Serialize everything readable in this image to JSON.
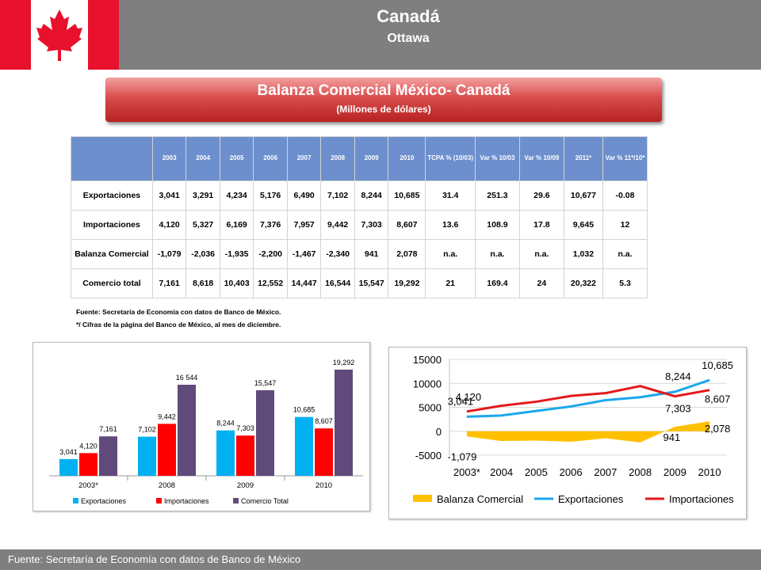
{
  "header": {
    "country": "Canadá",
    "city": "Ottawa"
  },
  "title": {
    "main": "Balanza Comercial México- Canadá",
    "sub": "(Millones de dólares)"
  },
  "table": {
    "columns": [
      "",
      "2003",
      "2004",
      "2005",
      "2006",
      "2007",
      "2008",
      "2009",
      "2010",
      "TCPA % (10/03)",
      "Var % 10/03",
      "Var % 10/09",
      "2011*",
      "Var % 11*/10*"
    ],
    "rows": [
      [
        "Exportaciones",
        "3,041",
        "3,291",
        "4,234",
        "5,176",
        "6,490",
        "7,102",
        "8,244",
        "10,685",
        "31.4",
        "251.3",
        "29.6",
        "10,677",
        "-0.08"
      ],
      [
        "Importaciones",
        "4,120",
        "5,327",
        "6,169",
        "7,376",
        "7,957",
        "9,442",
        "7,303",
        "8,607",
        "13.6",
        "108.9",
        "17.8",
        "9,645",
        "12"
      ],
      [
        "Balanza  Comercial",
        "-1,079",
        "-2,036",
        "-1,935",
        "-2,200",
        "-1,467",
        "-2,340",
        "941",
        "2,078",
        "n.a.",
        "n.a.",
        "n.a.",
        "1,032",
        "n.a."
      ],
      [
        "Comercio total",
        "7,161",
        "8,618",
        "10,403",
        "12,552",
        "14,447",
        "16,544",
        "15,547",
        "19,292",
        "21",
        "169.4",
        "24",
        "20,322",
        "5.3"
      ]
    ]
  },
  "notes": {
    "source": "Fuente: Secretaría de Economía  con datos de Banco de México.",
    "asterisk": "*/ Cifras de la página del Banco de México, al mes de diciembre."
  },
  "footer": "Fuente: Secretaría de Economía con datos de Banco de México",
  "colors": {
    "exports_bar": "#00b0f0",
    "imports_bar": "#ff0000",
    "total_bar": "#604a7b",
    "exports_line": "#1aa7ec",
    "imports_line": "#e3191c",
    "balance_area": "#ffc000",
    "flag_red": "#e8112d"
  },
  "chart_data": [
    {
      "type": "bar",
      "categories": [
        "2003*",
        "2008",
        "2009",
        "2010"
      ],
      "series": [
        {
          "name": "Exportaciones",
          "values": [
            3041,
            7102,
            8244,
            10685
          ],
          "labels": [
            "3,041",
            "7,102",
            "8,244",
            "10,685"
          ]
        },
        {
          "name": "Importaciones",
          "values": [
            4120,
            9442,
            7303,
            8607
          ],
          "labels": [
            "4,120",
            "9,442",
            "7,303",
            "8,607"
          ]
        },
        {
          "name": "Comercio Total",
          "values": [
            7161,
            16544,
            15547,
            19292
          ],
          "labels": [
            "7,161",
            "16 544",
            "15,547",
            "19,292"
          ]
        }
      ],
      "ylim": [
        0,
        21000
      ],
      "legend": "bottom"
    },
    {
      "type": "line",
      "categories": [
        "2003*",
        "2004",
        "2005",
        "2006",
        "2007",
        "2008",
        "2009",
        "2010"
      ],
      "series": [
        {
          "name": "Balanza Comercial",
          "kind": "area",
          "values": [
            -1079,
            -2036,
            -1935,
            -2200,
            -1467,
            -2340,
            941,
            2078
          ]
        },
        {
          "name": "Exportaciones",
          "values": [
            3041,
            3291,
            4234,
            5176,
            6490,
            7102,
            8244,
            10685
          ]
        },
        {
          "name": "Importaciones",
          "values": [
            4120,
            5327,
            6169,
            7376,
            7957,
            9442,
            7303,
            8607
          ]
        }
      ],
      "yticks": [
        "15000",
        "10000",
        "5000",
        "0",
        "-5000"
      ],
      "ylim": [
        -5000,
        15000
      ],
      "annotations": [
        {
          "series": "Importaciones",
          "x": "2003*",
          "label": "4,120"
        },
        {
          "series": "Exportaciones",
          "x": "2003*",
          "label": "3,041"
        },
        {
          "series": "Balanza Comercial",
          "x": "2003*",
          "label": "-1,079"
        },
        {
          "series": "Exportaciones",
          "x": "2009",
          "label": "8,244"
        },
        {
          "series": "Importaciones",
          "x": "2009",
          "label": "7,303"
        },
        {
          "series": "Balanza Comercial",
          "x": "2009",
          "label": "941"
        },
        {
          "series": "Exportaciones",
          "x": "2010",
          "label": "10,685"
        },
        {
          "series": "Importaciones",
          "x": "2010",
          "label": "8,607"
        },
        {
          "series": "Balanza Comercial",
          "x": "2010",
          "label": "2,078"
        }
      ],
      "legend": "bottom"
    }
  ]
}
